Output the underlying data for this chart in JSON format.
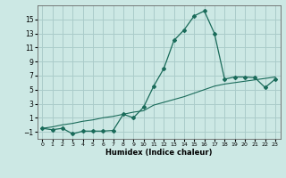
{
  "title": "",
  "xlabel": "Humidex (Indice chaleur)",
  "ylabel": "",
  "background_color": "#cce8e4",
  "grid_color": "#aaccca",
  "line_color": "#1a6b5a",
  "x_main": [
    0,
    1,
    2,
    3,
    4,
    5,
    6,
    7,
    8,
    9,
    10,
    11,
    12,
    13,
    14,
    15,
    16,
    17,
    18,
    19,
    20,
    21,
    22,
    23
  ],
  "y_curve": [
    -0.5,
    -0.7,
    -0.5,
    -1.3,
    -0.9,
    -0.9,
    -0.9,
    -0.8,
    1.5,
    1.0,
    2.5,
    5.5,
    8.0,
    12.0,
    13.5,
    15.5,
    16.2,
    13.0,
    6.5,
    6.8,
    6.8,
    6.7,
    5.3,
    6.5
  ],
  "y_linear": [
    -0.5,
    -0.3,
    0.0,
    0.2,
    0.5,
    0.7,
    1.0,
    1.2,
    1.5,
    1.8,
    2.0,
    2.8,
    3.2,
    3.6,
    4.0,
    4.5,
    5.0,
    5.5,
    5.8,
    6.0,
    6.2,
    6.4,
    6.6,
    6.8
  ],
  "yticks": [
    -1,
    1,
    3,
    5,
    7,
    9,
    11,
    13,
    15
  ],
  "xticks": [
    0,
    1,
    2,
    3,
    4,
    5,
    6,
    7,
    8,
    9,
    10,
    11,
    12,
    13,
    14,
    15,
    16,
    17,
    18,
    19,
    20,
    21,
    22,
    23
  ],
  "ylim": [
    -2,
    17
  ],
  "xlim": [
    -0.5,
    23.5
  ]
}
